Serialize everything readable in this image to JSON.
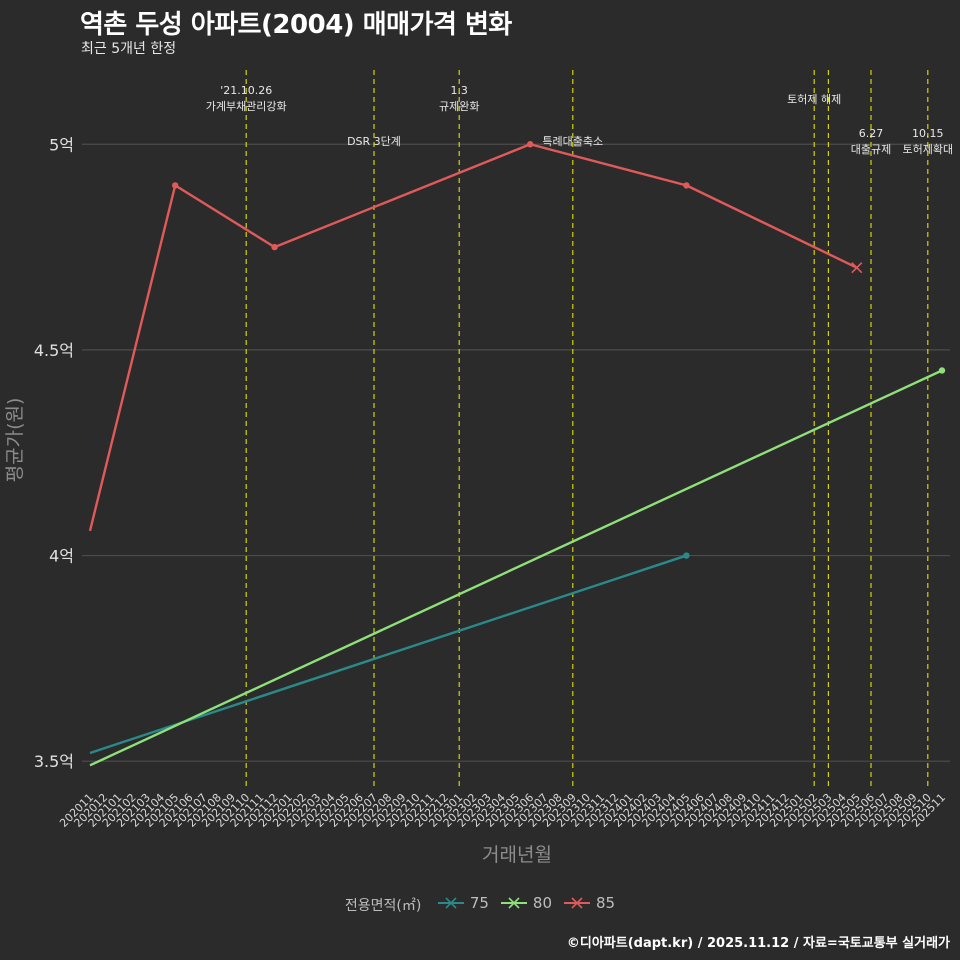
{
  "header": {
    "title": "역촌 두성 아파트(2004) 매매가격 변화",
    "subtitle": "최근 5개년 한정"
  },
  "caption": "©디아파트(dapt.kr) / 2025.11.12 / 자료=국토교통부 실거래가",
  "colors": {
    "background": "#2b2b2b",
    "grid": "#4d4d4d",
    "event_line": "#d4d400",
    "s75": "#2a8a8a",
    "s80": "#8fe07a",
    "s85": "#e05a5a"
  },
  "chart_data": {
    "type": "line",
    "xlabel": "거래년월",
    "ylabel": "평균가(원)",
    "ylim": [
      3.43,
      5.2
    ],
    "y_ticks": [
      {
        "value": 3.5,
        "label": "3.5억"
      },
      {
        "value": 4.0,
        "label": "4억"
      },
      {
        "value": 4.5,
        "label": "4.5억"
      },
      {
        "value": 5.0,
        "label": "5억"
      }
    ],
    "categories": [
      "202011",
      "202012",
      "202101",
      "202102",
      "202103",
      "202104",
      "202105",
      "202106",
      "202107",
      "202108",
      "202109",
      "202110",
      "202111",
      "202112",
      "202201",
      "202202",
      "202203",
      "202204",
      "202205",
      "202206",
      "202207",
      "202208",
      "202209",
      "202210",
      "202211",
      "202212",
      "202301",
      "202302",
      "202303",
      "202304",
      "202305",
      "202306",
      "202307",
      "202308",
      "202309",
      "202310",
      "202311",
      "202312",
      "202401",
      "202402",
      "202403",
      "202404",
      "202405",
      "202406",
      "202407",
      "202408",
      "202409",
      "202410",
      "202411",
      "202412",
      "202501",
      "202502",
      "202503",
      "202504",
      "202505",
      "202506",
      "202507",
      "202508",
      "202509",
      "202510",
      "202511"
    ],
    "legend_title": "전용면적(㎡)",
    "series": [
      {
        "name": "75",
        "color": "#2a8a8a",
        "points": [
          {
            "x": "202011",
            "y": 3.52
          },
          {
            "x": "202405",
            "y": 4.0
          }
        ],
        "markers": [
          {
            "x": "202405",
            "y": 4.0,
            "shape": "dot"
          }
        ]
      },
      {
        "name": "80",
        "color": "#8fe07a",
        "points": [
          {
            "x": "202011",
            "y": 3.49
          },
          {
            "x": "202511",
            "y": 4.45
          }
        ],
        "markers": [
          {
            "x": "202511",
            "y": 4.45,
            "shape": "dot"
          }
        ]
      },
      {
        "name": "85",
        "color": "#e05a5a",
        "points": [
          {
            "x": "202011",
            "y": 4.06
          },
          {
            "x": "202105",
            "y": 4.9
          },
          {
            "x": "202112",
            "y": 4.75
          },
          {
            "x": "202306",
            "y": 5.0
          },
          {
            "x": "202405",
            "y": 4.9
          },
          {
            "x": "202505",
            "y": 4.7
          }
        ],
        "markers": [
          {
            "x": "202105",
            "y": 4.9,
            "shape": "dot"
          },
          {
            "x": "202112",
            "y": 4.75,
            "shape": "dot"
          },
          {
            "x": "202306",
            "y": 5.0,
            "shape": "dot"
          },
          {
            "x": "202405",
            "y": 4.9,
            "shape": "dot"
          },
          {
            "x": "202505",
            "y": 4.7,
            "shape": "x"
          }
        ]
      }
    ],
    "events": [
      {
        "x": "202110",
        "lines": [
          "'21.10.26",
          "가계부채관리강화"
        ],
        "pos": "top"
      },
      {
        "x": "202207",
        "lines": [
          "DSR 3단계"
        ],
        "pos": "mid"
      },
      {
        "x": "202301",
        "lines": [
          "1.3",
          "규제완화"
        ],
        "pos": "top"
      },
      {
        "x": "202309",
        "lines": [
          "특례대출축소"
        ],
        "pos": "mid"
      },
      {
        "x": "202502",
        "lines": [
          "토허제 해제"
        ],
        "pos": "top2"
      },
      {
        "x": "202503",
        "lines": [],
        "pos": "none"
      },
      {
        "x": "202506",
        "lines": [
          "6.27",
          "대출규제"
        ],
        "pos": "low"
      },
      {
        "x": "202510",
        "lines": [
          "10.15",
          "토허제확대"
        ],
        "pos": "low"
      }
    ]
  }
}
